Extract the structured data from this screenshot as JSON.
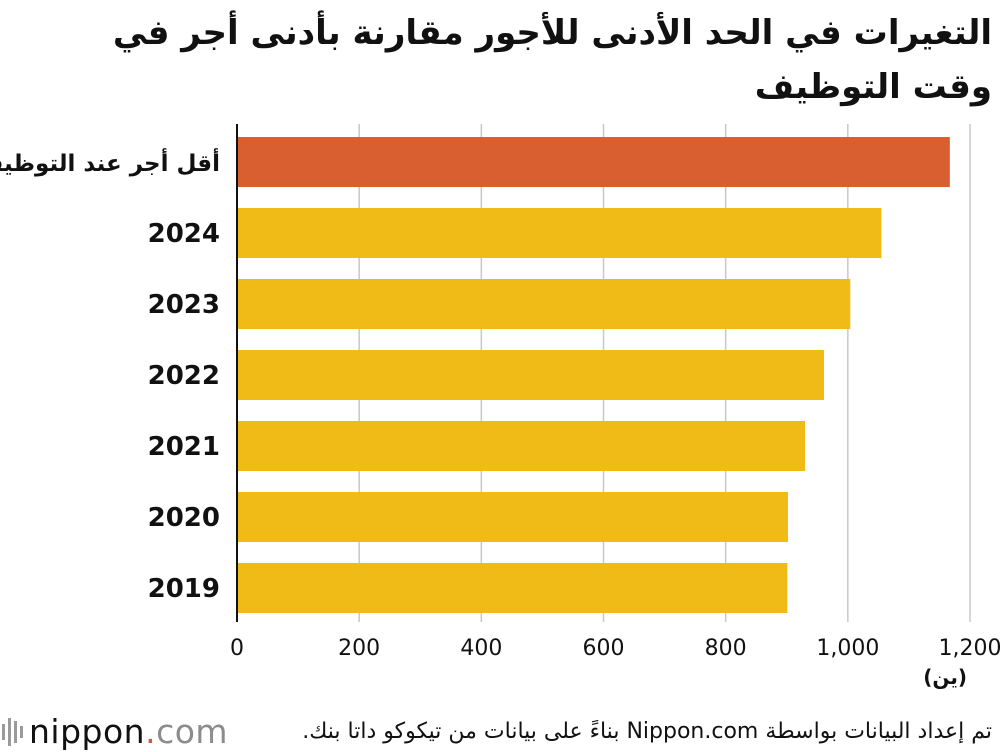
{
  "title": "التغيرات في الحد الأدنى للأجور مقارنة بأدنى أجر في وقت التوظيف",
  "chart_data": {
    "type": "bar",
    "orientation": "horizontal",
    "title": "التغيرات في الحد الأدنى للأجور مقارنة بأدنى أجر في وقت التوظيف",
    "categories": [
      "أقل أجر عند التوظيف",
      "2024",
      "2023",
      "2022",
      "2021",
      "2020",
      "2019"
    ],
    "values": [
      1167,
      1055,
      1004,
      961,
      930,
      902,
      901
    ],
    "colors": [
      "#d95f31",
      "#f0ba17",
      "#f0ba17",
      "#f0ba17",
      "#f0ba17",
      "#f0ba17",
      "#f0ba17"
    ],
    "xticks": [
      0,
      200,
      400,
      600,
      800,
      1000,
      1200
    ],
    "xtick_labels": [
      "0",
      "200",
      "400",
      "600",
      "800",
      "1,000",
      "1,200"
    ],
    "xlim": [
      0,
      1200
    ],
    "xlabel": "(ين)",
    "ylabel": "",
    "grid": true
  },
  "footer": {
    "source": "تم إعداد البيانات بواسطة Nippon.com بناءً على بيانات من تيكوكو داتا بنك.",
    "logo_main": "nippon",
    "logo_dot": ".",
    "logo_com": "com"
  }
}
